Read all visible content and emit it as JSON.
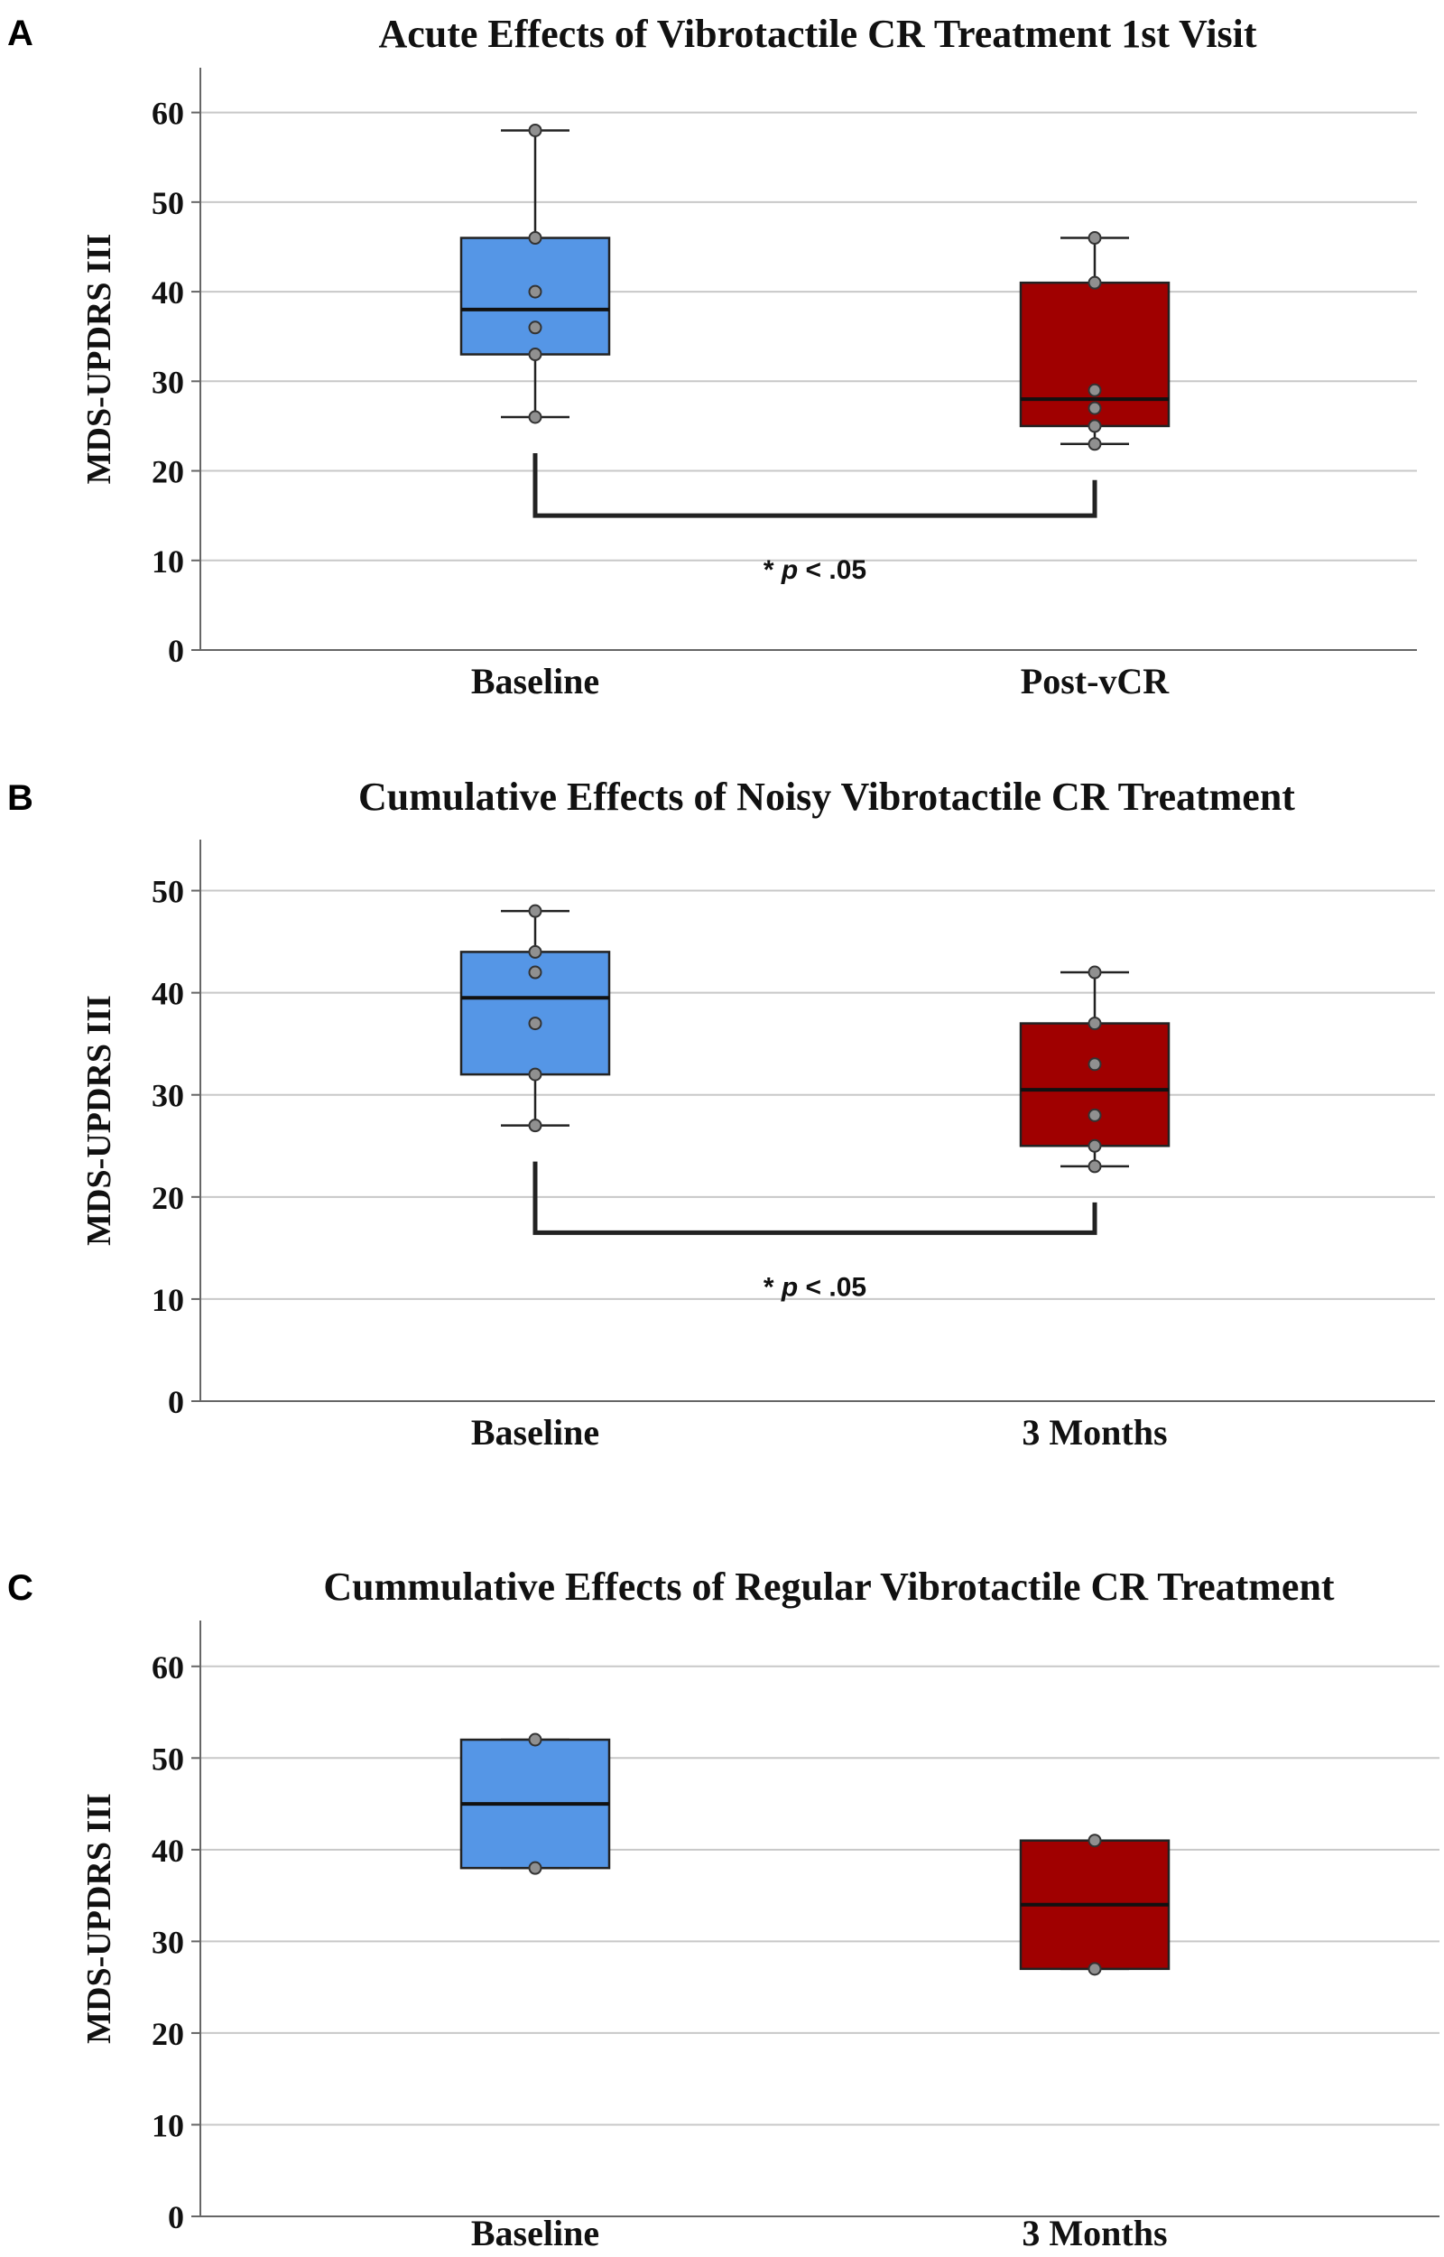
{
  "chart_data": [
    {
      "type": "box",
      "panel_label": "A",
      "title": "Acute Effects of Vibrotactile CR Treatment 1st Visit",
      "ylabel": "MDS-UPDRS III",
      "xlabel": "",
      "ylim": [
        0,
        65
      ],
      "yticks": [
        "0",
        "10",
        "20",
        "30",
        "40",
        "50",
        "60"
      ],
      "grid": true,
      "categories": [
        "Baseline",
        "Post-vCR"
      ],
      "boxes": [
        {
          "name": "Baseline",
          "color": "#5596e6",
          "min": 26,
          "q1": 33,
          "median": 38,
          "q3": 46,
          "max": 58,
          "points": [
            58,
            46,
            40,
            36,
            33,
            26
          ]
        },
        {
          "name": "Post-vCR",
          "color": "#a00000",
          "min": 23,
          "q1": 25,
          "median": 28,
          "q3": 41,
          "max": 46,
          "points": [
            46,
            41,
            29,
            27,
            25,
            23
          ]
        }
      ],
      "significance": {
        "label_star": "*",
        "label_p": "p",
        "label_rest": " < .05",
        "y": 15
      }
    },
    {
      "type": "box",
      "panel_label": "B",
      "title": "Cumulative Effects of Noisy Vibrotactile CR Treatment",
      "ylabel": "MDS-UPDRS III",
      "xlabel": "",
      "ylim": [
        0,
        55
      ],
      "yticks": [
        "0",
        "10",
        "20",
        "30",
        "40",
        "50"
      ],
      "grid": true,
      "categories": [
        "Baseline",
        "3 Months"
      ],
      "boxes": [
        {
          "name": "Baseline",
          "color": "#5596e6",
          "min": 27,
          "q1": 32,
          "median": 39.5,
          "q3": 44,
          "max": 48,
          "points": [
            48,
            44,
            42,
            37,
            32,
            27
          ]
        },
        {
          "name": "3 Months",
          "color": "#a00000",
          "min": 23,
          "q1": 25,
          "median": 30.5,
          "q3": 37,
          "max": 42,
          "points": [
            42,
            37,
            33,
            28,
            25,
            23
          ]
        }
      ],
      "significance": {
        "label_star": "*",
        "label_p": "p",
        "label_rest": " < .05",
        "y": 16.5
      }
    },
    {
      "type": "box",
      "panel_label": "C",
      "title": "Cummulative Effects of Regular Vibrotactile CR Treatment",
      "ylabel": "MDS-UPDRS III",
      "xlabel": "",
      "ylim": [
        0,
        65
      ],
      "yticks": [
        "0",
        "10",
        "20",
        "30",
        "40",
        "50",
        "60"
      ],
      "grid": true,
      "categories": [
        "Baseline",
        "3 Months"
      ],
      "boxes": [
        {
          "name": "Baseline",
          "color": "#5596e6",
          "min": 38,
          "q1": 38,
          "median": 45,
          "q3": 52,
          "max": 52,
          "points": [
            52,
            38
          ]
        },
        {
          "name": "3 Months",
          "color": "#a00000",
          "min": 27,
          "q1": 27,
          "median": 34,
          "q3": 41,
          "max": 41,
          "points": [
            41,
            27
          ]
        }
      ]
    }
  ]
}
